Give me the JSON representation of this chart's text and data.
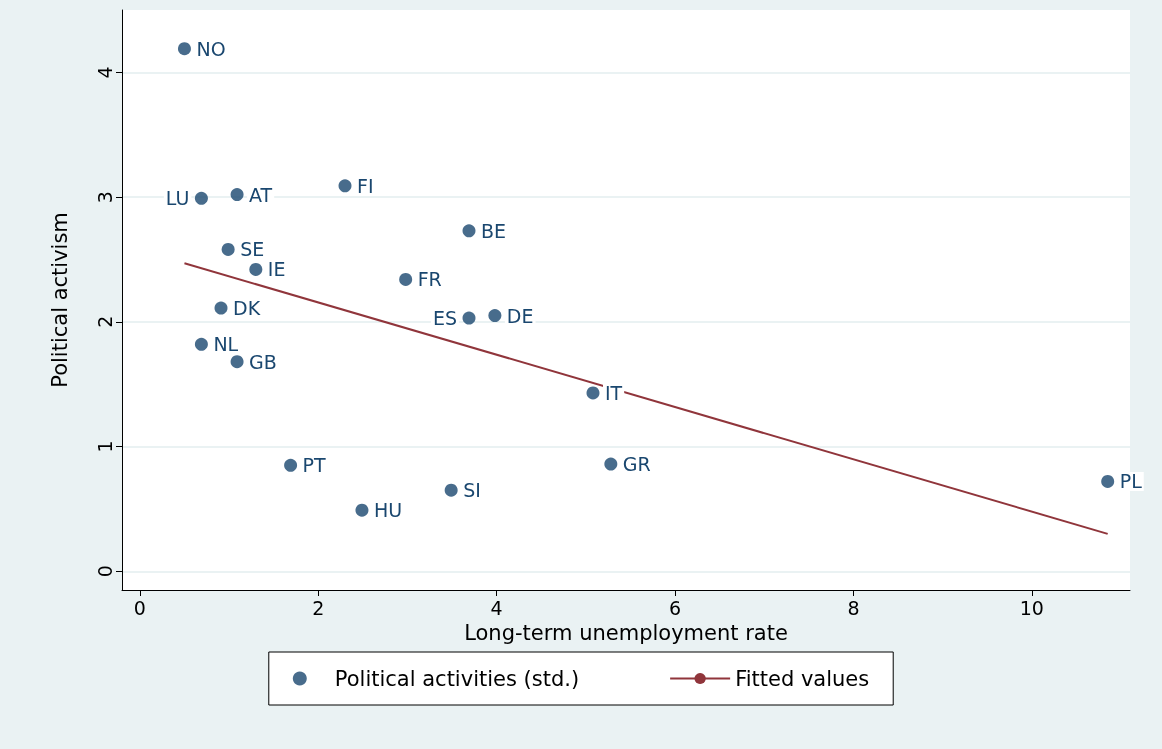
{
  "chart_data": {
    "type": "scatter",
    "xlabel": "Long-term unemployment rate",
    "ylabel": "Political activism",
    "xlim": [
      -0.2,
      11.1
    ],
    "xticks": [
      0,
      2,
      4,
      6,
      8,
      10
    ],
    "ylim": [
      -0.15,
      4.5
    ],
    "yticks": [
      0,
      1,
      2,
      3,
      4
    ],
    "grid": "y",
    "legend": "bottom",
    "marker": "circle",
    "series": [
      {
        "name": "Political activities (std.)",
        "color": "#1a476f",
        "x": [
          0.5,
          0.69,
          1.09,
          2.3,
          3.69,
          0.99,
          1.3,
          2.98,
          0.91,
          3.69,
          3.98,
          0.69,
          1.09,
          5.08,
          1.69,
          5.28,
          3.49,
          2.49,
          10.85
        ],
        "values": [
          4.19,
          2.99,
          3.02,
          3.09,
          2.73,
          2.58,
          2.42,
          2.34,
          2.11,
          2.03,
          2.05,
          1.82,
          1.68,
          1.43,
          0.85,
          0.86,
          0.65,
          0.49,
          0.72
        ]
      },
      {
        "name": "Fitted values",
        "type": "line",
        "color": "#90353b",
        "marker": "none",
        "line_style": "solid",
        "x": [
          0.5,
          10.85
        ],
        "values": [
          2.47,
          0.3
        ]
      }
    ],
    "annotations": [
      {
        "text": "NO",
        "x": 0.5,
        "y": 4.19
      },
      {
        "text": "LU",
        "x": 0.69,
        "y": 2.99
      },
      {
        "text": "AT",
        "x": 1.09,
        "y": 3.02
      },
      {
        "text": "FI",
        "x": 2.3,
        "y": 3.09
      },
      {
        "text": "BE",
        "x": 3.69,
        "y": 2.73
      },
      {
        "text": "SE",
        "x": 0.99,
        "y": 2.58
      },
      {
        "text": "IE",
        "x": 1.3,
        "y": 2.42
      },
      {
        "text": "FR",
        "x": 2.98,
        "y": 2.34
      },
      {
        "text": "DK",
        "x": 0.91,
        "y": 2.11
      },
      {
        "text": "ES",
        "x": 3.69,
        "y": 2.03
      },
      {
        "text": "DE",
        "x": 3.98,
        "y": 2.05
      },
      {
        "text": "NL",
        "x": 0.69,
        "y": 1.82
      },
      {
        "text": "GB",
        "x": 1.09,
        "y": 1.68
      },
      {
        "text": "IT",
        "x": 5.08,
        "y": 1.43
      },
      {
        "text": "PT",
        "x": 1.69,
        "y": 0.85
      },
      {
        "text": "GR",
        "x": 5.28,
        "y": 0.86
      },
      {
        "text": "SI",
        "x": 3.49,
        "y": 0.65
      },
      {
        "text": "HU",
        "x": 2.49,
        "y": 0.49
      },
      {
        "text": "PL",
        "x": 10.85,
        "y": 0.72
      }
    ]
  }
}
